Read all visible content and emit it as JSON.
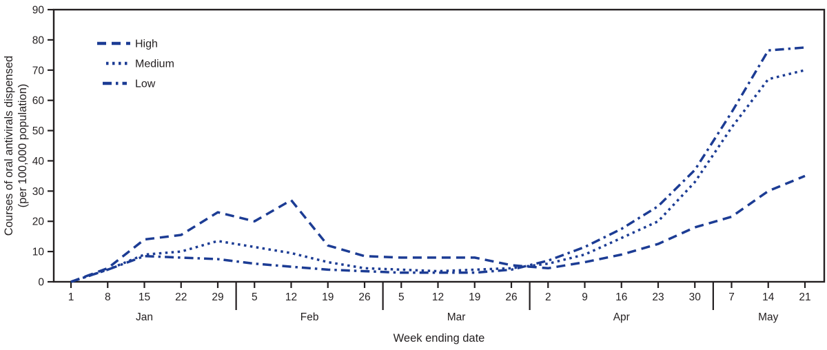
{
  "figure": {
    "title": "",
    "x_axis_title": "Week ending date",
    "y_axis_title_line1": "Courses of oral antivirals dispensed",
    "y_axis_title_line2": "(per 100,000 population)"
  },
  "colors": {
    "line": "#1c3c94",
    "text": "#231f20",
    "axis": "#231f20"
  },
  "chart_data": {
    "type": "line",
    "title": "",
    "xlabel": "Week ending date",
    "ylabel": "Courses of oral antivirals dispensed (per 100,000 population)",
    "ylim": [
      0,
      90
    ],
    "y_ticks": [
      0,
      10,
      20,
      30,
      40,
      50,
      60,
      70,
      80,
      90
    ],
    "grid": false,
    "legend_position": "inside-top-left",
    "x_tick_labels": [
      "1",
      "8",
      "15",
      "22",
      "29",
      "5",
      "12",
      "19",
      "26",
      "5",
      "12",
      "19",
      "26",
      "2",
      "9",
      "16",
      "23",
      "30",
      "7",
      "14",
      "21"
    ],
    "month_groups": [
      {
        "label": "Jan",
        "count": 5
      },
      {
        "label": "Feb",
        "count": 4
      },
      {
        "label": "Mar",
        "count": 4
      },
      {
        "label": "Apr",
        "count": 5
      },
      {
        "label": "May",
        "count": 3
      }
    ],
    "series": [
      {
        "name": "High",
        "dash": "long-dash",
        "color": "#1c3c94",
        "values": [
          0,
          4.5,
          14,
          15.5,
          23,
          20,
          27,
          12,
          8.5,
          8,
          8,
          8,
          5.5,
          4.5,
          6.5,
          9,
          12.5,
          18,
          21.5,
          30,
          35
        ]
      },
      {
        "name": "Medium",
        "dash": "dot",
        "color": "#1c3c94",
        "values": [
          0,
          4,
          9,
          10,
          13.5,
          11.5,
          9.5,
          6.5,
          4.5,
          4,
          3.5,
          4,
          4.5,
          6,
          9,
          14.5,
          20,
          33,
          51,
          67,
          70
        ]
      },
      {
        "name": "Low",
        "dash": "dash-dot",
        "color": "#1c3c94",
        "values": [
          0,
          4,
          8.5,
          8,
          7.5,
          6,
          5,
          4,
          3.5,
          3,
          3,
          3,
          4,
          7,
          11.5,
          17.5,
          25,
          37,
          56,
          76.5,
          77.5
        ]
      }
    ]
  }
}
